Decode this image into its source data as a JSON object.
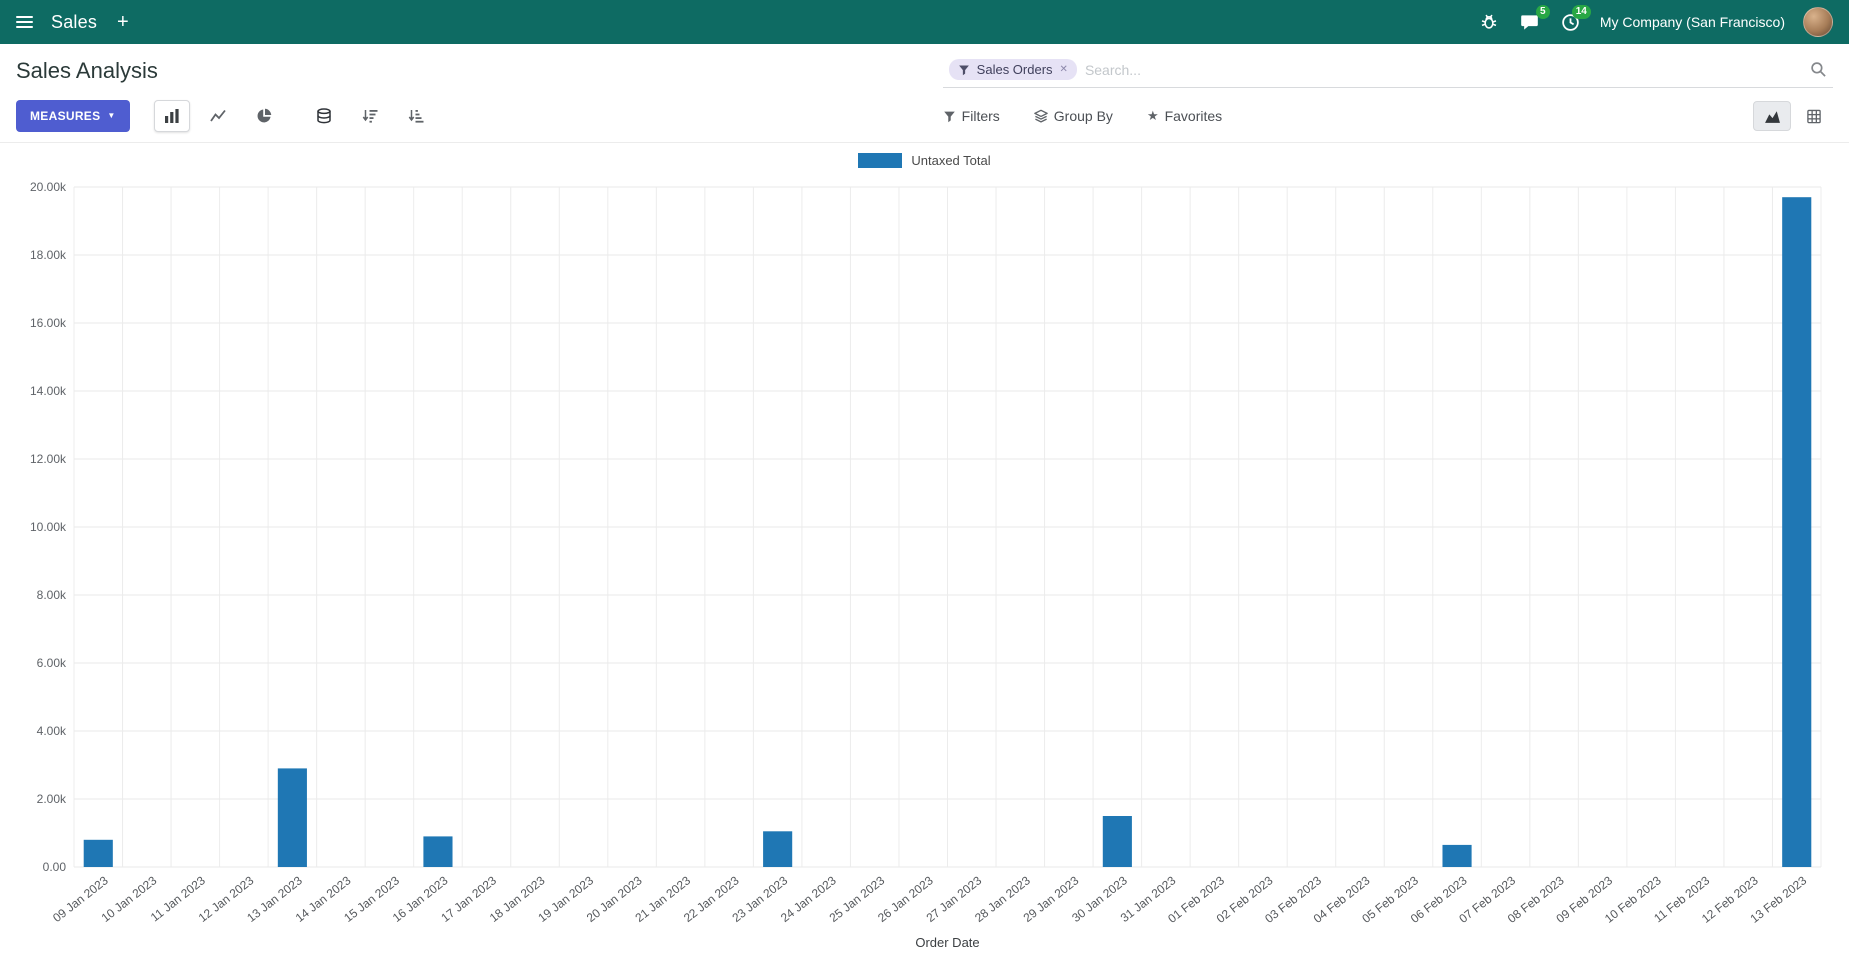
{
  "colors": {
    "navbar_bg": "#0e6b63",
    "primary": "#4f5dd0",
    "badge_green": "#28a745",
    "bar": "#1f77b4"
  },
  "navbar": {
    "app_title": "Sales",
    "company": "My Company (San Francisco)",
    "messages_badge": "5",
    "activities_badge": "14"
  },
  "control_panel": {
    "title": "Sales Analysis",
    "measures_label": "MEASURES",
    "filters_label": "Filters",
    "group_by_label": "Group By",
    "favorites_label": "Favorites",
    "search": {
      "facet_label": "Sales Orders",
      "placeholder": "Search..."
    }
  },
  "icons": {
    "plus": "+",
    "caret_down": "▼",
    "close": "✕",
    "star": "★"
  },
  "chart_data": {
    "type": "bar",
    "title": "",
    "categories": [
      "09 Jan 2023",
      "10 Jan 2023",
      "11 Jan 2023",
      "12 Jan 2023",
      "13 Jan 2023",
      "14 Jan 2023",
      "15 Jan 2023",
      "16 Jan 2023",
      "17 Jan 2023",
      "18 Jan 2023",
      "19 Jan 2023",
      "20 Jan 2023",
      "21 Jan 2023",
      "22 Jan 2023",
      "23 Jan 2023",
      "24 Jan 2023",
      "25 Jan 2023",
      "26 Jan 2023",
      "27 Jan 2023",
      "28 Jan 2023",
      "29 Jan 2023",
      "30 Jan 2023",
      "31 Jan 2023",
      "01 Feb 2023",
      "02 Feb 2023",
      "03 Feb 2023",
      "04 Feb 2023",
      "05 Feb 2023",
      "06 Feb 2023",
      "07 Feb 2023",
      "08 Feb 2023",
      "09 Feb 2023",
      "10 Feb 2023",
      "11 Feb 2023",
      "12 Feb 2023",
      "13 Feb 2023"
    ],
    "series": [
      {
        "name": "Untaxed Total",
        "values": [
          800,
          0,
          0,
          0,
          2900,
          0,
          0,
          900,
          0,
          0,
          0,
          0,
          0,
          0,
          1050,
          0,
          0,
          0,
          0,
          0,
          0,
          1500,
          0,
          0,
          0,
          0,
          0,
          0,
          650,
          0,
          0,
          0,
          0,
          0,
          0,
          19700
        ]
      }
    ],
    "xlabel": "Order Date",
    "ylabel": "",
    "ylim": [
      0,
      20000
    ],
    "ytick_step": 2000,
    "ytick_labels": [
      "0.00",
      "2.00k",
      "4.00k",
      "6.00k",
      "8.00k",
      "10.00k",
      "12.00k",
      "14.00k",
      "16.00k",
      "18.00k",
      "20.00k"
    ],
    "grid": true,
    "legend_position": "top",
    "bar_color": "#1f77b4"
  }
}
